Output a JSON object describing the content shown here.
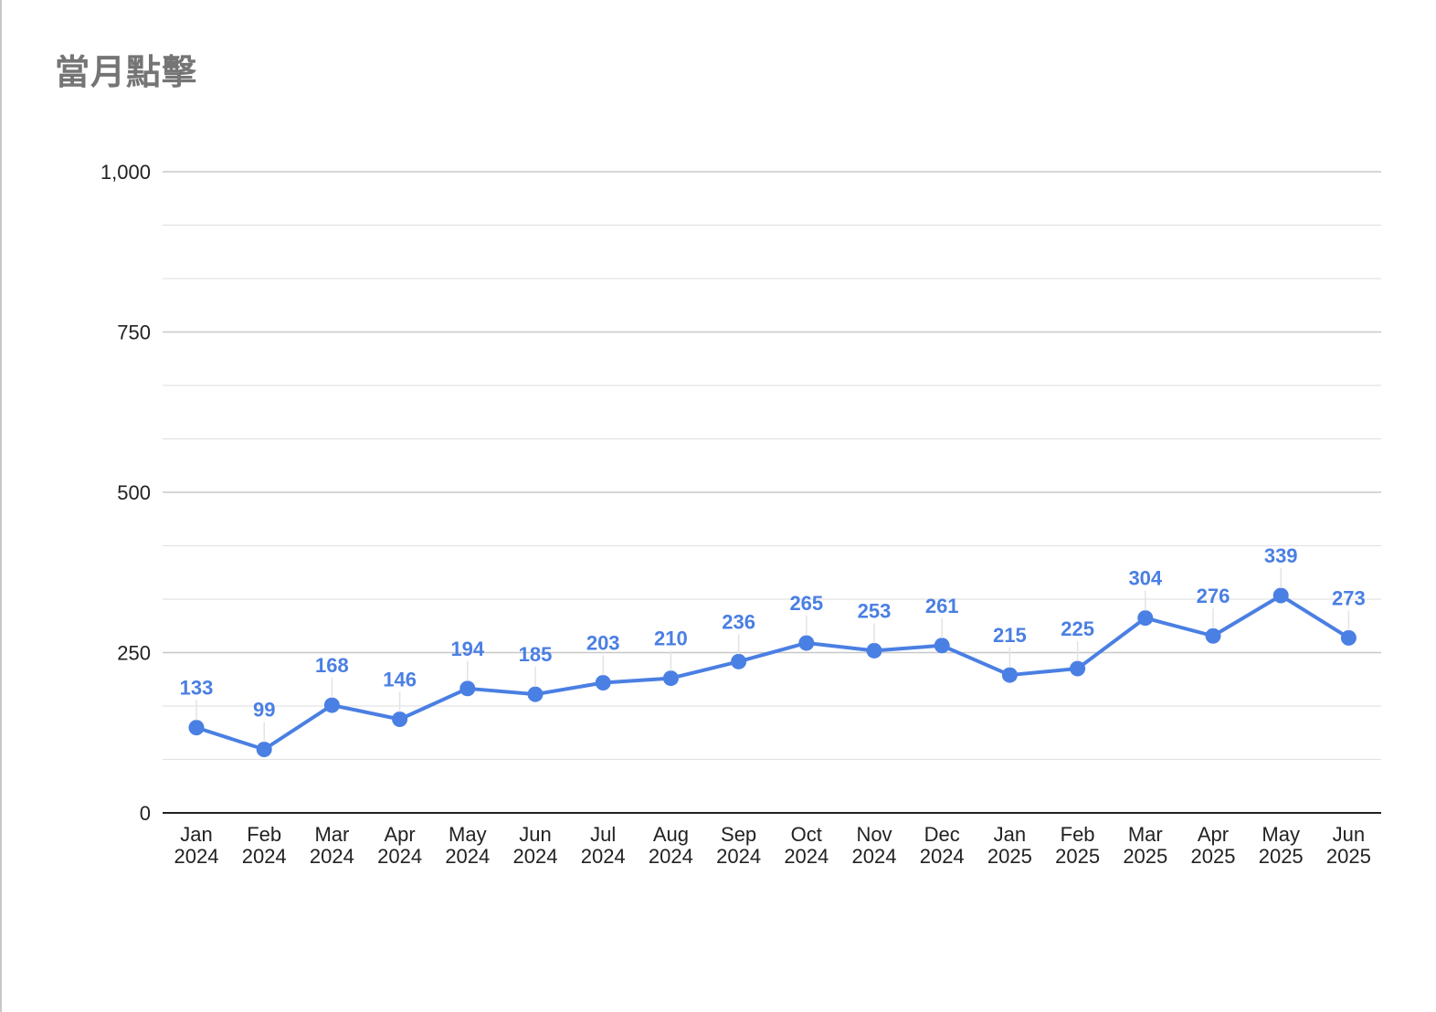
{
  "title": "當月點擊",
  "colors": {
    "series": "#4a7fe3",
    "grid_major": "#c8c8c8",
    "grid_minor": "#e3e3e3",
    "axis": "#222222",
    "title": "#757575"
  },
  "chart_data": {
    "type": "line",
    "title": "當月點擊",
    "xlabel": "",
    "ylabel": "",
    "ylim": [
      0,
      1000
    ],
    "y_ticks": [
      0,
      250,
      500,
      750,
      1000
    ],
    "y_tick_labels": [
      "0",
      "250",
      "500",
      "750",
      "1,000"
    ],
    "minor_gridlines": true,
    "legend": "none",
    "categories": [
      [
        "Jan",
        "2024"
      ],
      [
        "Feb",
        "2024"
      ],
      [
        "Mar",
        "2024"
      ],
      [
        "Apr",
        "2024"
      ],
      [
        "May",
        "2024"
      ],
      [
        "Jun",
        "2024"
      ],
      [
        "Jul",
        "2024"
      ],
      [
        "Aug",
        "2024"
      ],
      [
        "Sep",
        "2024"
      ],
      [
        "Oct",
        "2024"
      ],
      [
        "Nov",
        "2024"
      ],
      [
        "Dec",
        "2024"
      ],
      [
        "Jan",
        "2025"
      ],
      [
        "Feb",
        "2025"
      ],
      [
        "Mar",
        "2025"
      ],
      [
        "Apr",
        "2025"
      ],
      [
        "May",
        "2025"
      ],
      [
        "Jun",
        "2025"
      ]
    ],
    "series": [
      {
        "values": [
          133,
          99,
          168,
          146,
          194,
          185,
          203,
          210,
          236,
          265,
          253,
          261,
          215,
          225,
          304,
          276,
          339,
          273
        ]
      }
    ]
  }
}
